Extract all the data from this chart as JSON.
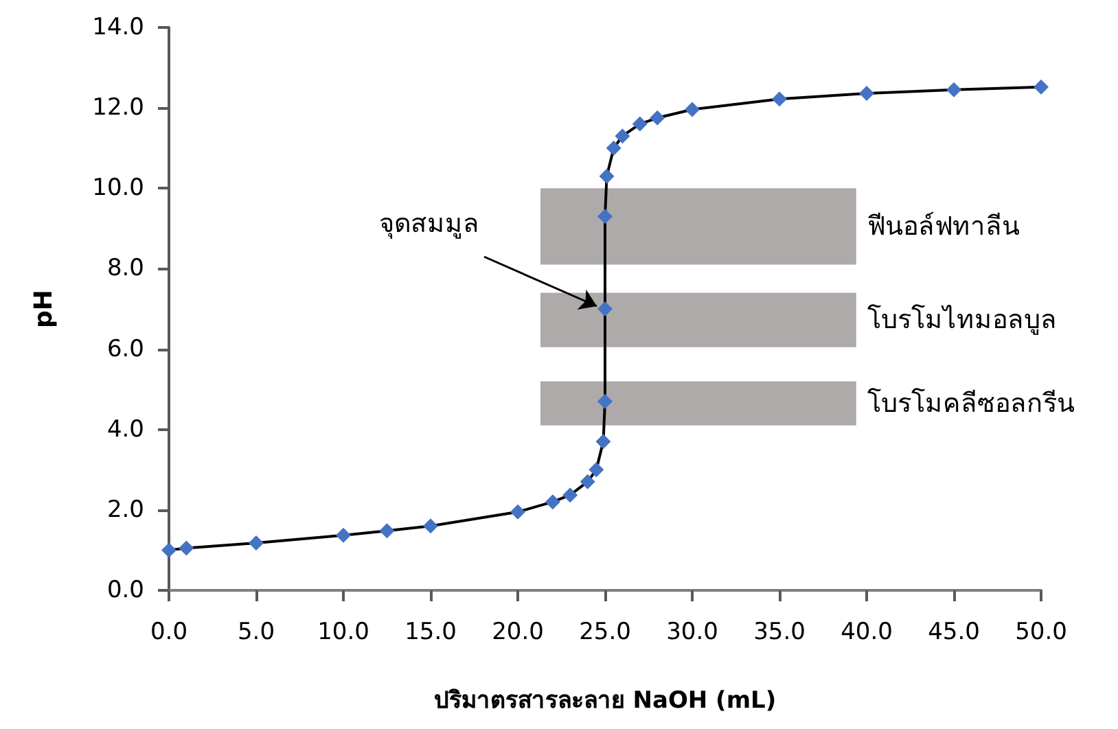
{
  "chart_data": {
    "type": "line",
    "xlabel": "ปริมาตรสารละลาย NaOH (mL)",
    "ylabel": "pH",
    "x": [
      0,
      1,
      5,
      10,
      12.5,
      15,
      20,
      22,
      23,
      24,
      24.5,
      24.9,
      25,
      25,
      25,
      25.1,
      25.5,
      26,
      27,
      28,
      30,
      35,
      40,
      45,
      50
    ],
    "series": [
      {
        "color": "#4472c4",
        "values": [
          1.0,
          1.05,
          1.18,
          1.37,
          1.48,
          1.6,
          1.95,
          2.2,
          2.37,
          2.7,
          3.0,
          3.7,
          4.7,
          7.0,
          9.3,
          10.3,
          11.0,
          11.3,
          11.6,
          11.75,
          11.96,
          12.22,
          12.36,
          12.45,
          12.52
        ]
      }
    ],
    "xlim": [
      0,
      50
    ],
    "xticks": [
      {
        "value": 0,
        "label": "0.0"
      },
      {
        "value": 5,
        "label": "5.0"
      },
      {
        "value": 10,
        "label": "10.0"
      },
      {
        "value": 15,
        "label": "15.0"
      },
      {
        "value": 20,
        "label": "20.0"
      },
      {
        "value": 25,
        "label": "25.0"
      },
      {
        "value": 30,
        "label": "30.0"
      },
      {
        "value": 35,
        "label": "35.0"
      },
      {
        "value": 40,
        "label": "40.0"
      },
      {
        "value": 45,
        "label": "45.0"
      },
      {
        "value": 50,
        "label": "50.0"
      }
    ],
    "ylim": [
      0,
      14
    ],
    "yticks": [
      {
        "value": 0,
        "label": "0.0"
      },
      {
        "value": 2,
        "label": "2.0"
      },
      {
        "value": 4,
        "label": "4.0"
      },
      {
        "value": 6,
        "label": "6.0"
      },
      {
        "value": 8,
        "label": "8.0"
      },
      {
        "value": 10,
        "label": "10.0"
      },
      {
        "value": 12,
        "label": "12.0"
      },
      {
        "value": 14,
        "label": "14.0"
      }
    ],
    "bands": [
      {
        "axis": "y",
        "from": 8.1,
        "to": 10.0,
        "label": "ฟีนอล์ฟทาลีน",
        "color": "#aeaaaa"
      },
      {
        "axis": "y",
        "from": 6.05,
        "to": 7.4,
        "label": "โบรโมไทมอลบูล",
        "color": "#aeaaaa"
      },
      {
        "axis": "y",
        "from": 4.1,
        "to": 5.2,
        "label": "โบรโมคลีซอลกรีน",
        "color": "#aeaaaa"
      }
    ],
    "annotations": [
      {
        "text": "จุดสมมูล",
        "x": 25,
        "y": 7.0
      }
    ],
    "marker": "diamond",
    "line_style": "solid",
    "grid": false
  }
}
